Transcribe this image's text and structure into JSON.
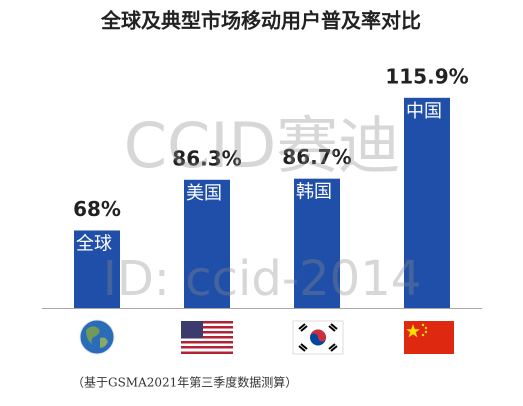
{
  "chart_data": {
    "type": "bar",
    "title": "全球及典型市场移动用户普及率对比",
    "categories": [
      "全球",
      "美国",
      "韩国",
      "中国"
    ],
    "values": [
      68,
      86.3,
      86.7,
      115.9
    ],
    "value_labels": [
      "68%",
      "86.3%",
      "86.7%",
      "115.9%"
    ],
    "color": "#1f4fa8",
    "ylim": [
      40,
      118
    ],
    "source": "（基于GSMA2021年第三季度数据测算）",
    "watermarks": [
      "CCID赛迪",
      "ID: ccid-2014"
    ]
  }
}
